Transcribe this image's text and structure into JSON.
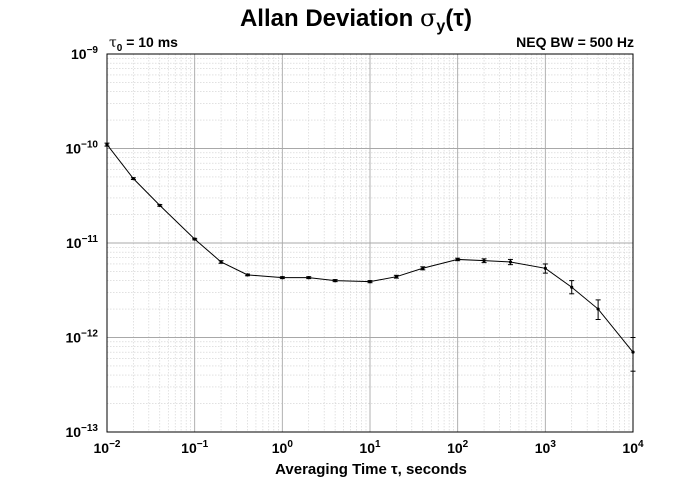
{
  "chart_data": {
    "type": "line",
    "title": "Allan Deviation σy(τ)",
    "title_main": "Allan Deviation ",
    "title_sigma": "σ",
    "title_sub": "y",
    "title_tail": "(τ)",
    "annotation_left": "τ0 = 10 ms",
    "annotation_left_symbol": "τ",
    "annotation_left_sub": "0",
    "annotation_left_rest": " = 10 ms",
    "annotation_right": "NEQ BW = 500 Hz",
    "xlabel": "Averaging Time τ, seconds",
    "ylabel": "",
    "xscale": "log",
    "yscale": "log",
    "xlim": [
      0.01,
      10000
    ],
    "ylim": [
      1e-13,
      1e-09
    ],
    "grid": true,
    "x_ticks": [
      {
        "base": "10",
        "exp": "−2"
      },
      {
        "base": "10",
        "exp": "−1"
      },
      {
        "base": "10",
        "exp": "0"
      },
      {
        "base": "10",
        "exp": "1"
      },
      {
        "base": "10",
        "exp": "2"
      },
      {
        "base": "10",
        "exp": "3"
      },
      {
        "base": "10",
        "exp": "4"
      }
    ],
    "y_ticks": [
      {
        "base": "10",
        "exp": "−13"
      },
      {
        "base": "10",
        "exp": "−12"
      },
      {
        "base": "10",
        "exp": "−11"
      },
      {
        "base": "10",
        "exp": "−10"
      },
      {
        "base": "10",
        "exp": "−9"
      }
    ],
    "series": [
      {
        "name": "sigma_y",
        "x": [
          0.01,
          0.02,
          0.04,
          0.1,
          0.2,
          0.4,
          1,
          2,
          4,
          10,
          20,
          40,
          100,
          200,
          400,
          1000,
          2000,
          4000,
          10000
        ],
        "y": [
          1.1e-10,
          4.8e-11,
          2.5e-11,
          1.1e-11,
          6.3e-12,
          4.6e-12,
          4.3e-12,
          4.3e-12,
          4e-12,
          3.9e-12,
          4.4e-12,
          5.4e-12,
          6.7e-12,
          6.5e-12,
          6.3e-12,
          5.4e-12,
          3.4e-12,
          2e-12,
          7e-13
        ],
        "err_low": [
          1.06e-10,
          4.7e-11,
          2.45e-11,
          1.08e-11,
          6.1e-12,
          4.5e-12,
          4.2e-12,
          4.2e-12,
          3.9e-12,
          3.8e-12,
          4.25e-12,
          5.2e-12,
          6.5e-12,
          6.2e-12,
          5.9e-12,
          4.8e-12,
          2.9e-12,
          1.55e-12,
          4.4e-13
        ],
        "err_high": [
          1.14e-10,
          4.9e-11,
          2.55e-11,
          1.12e-11,
          6.5e-12,
          4.7e-12,
          4.4e-12,
          4.4e-12,
          4.1e-12,
          4e-12,
          4.55e-12,
          5.6e-12,
          6.9e-12,
          6.8e-12,
          6.7e-12,
          6e-12,
          4e-12,
          2.5e-12,
          1e-12
        ]
      }
    ]
  }
}
